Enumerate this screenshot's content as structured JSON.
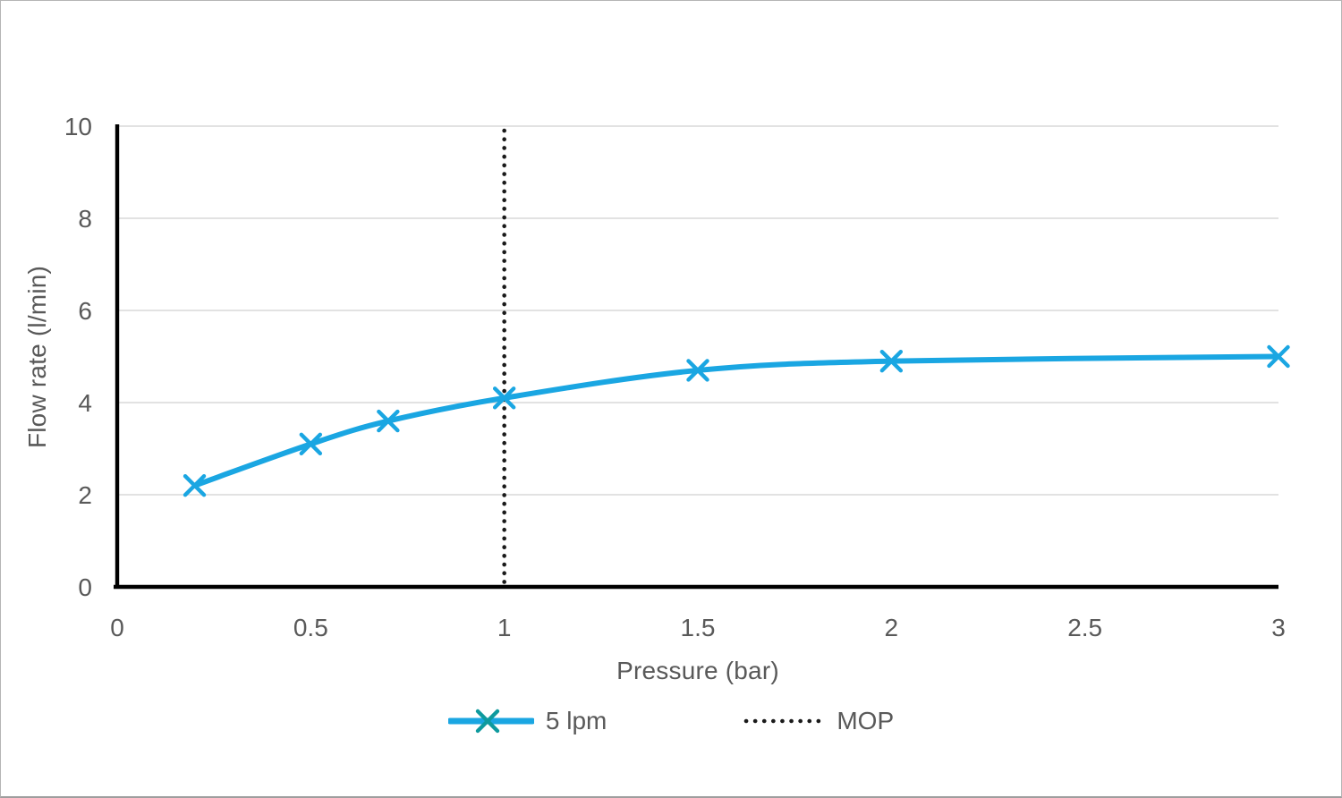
{
  "page": {
    "background": "#ffffff",
    "border_color": "#b5b5b5"
  },
  "chart_data": {
    "type": "line",
    "title": "",
    "xlabel": "Pressure (bar)",
    "ylabel": "Flow rate (l/min)",
    "xlim": [
      0,
      3
    ],
    "ylim": [
      0,
      10
    ],
    "x_ticks": [
      {
        "value": 0,
        "label": "0"
      },
      {
        "value": 0.5,
        "label": "0.5"
      },
      {
        "value": 1,
        "label": "1"
      },
      {
        "value": 1.5,
        "label": "1.5"
      },
      {
        "value": 2,
        "label": "2"
      },
      {
        "value": 2.5,
        "label": "2.5"
      },
      {
        "value": 3,
        "label": "3"
      }
    ],
    "y_ticks": [
      {
        "value": 0,
        "label": "0"
      },
      {
        "value": 2,
        "label": "2"
      },
      {
        "value": 4,
        "label": "4"
      },
      {
        "value": 6,
        "label": "6"
      },
      {
        "value": 8,
        "label": "8"
      },
      {
        "value": 10,
        "label": "10"
      }
    ],
    "grid": {
      "horizontal": true,
      "vertical": false,
      "color": "#d9d9d9"
    },
    "axis_color": "#000000",
    "tick_label_color": "#595959",
    "legend_position": "bottom-center",
    "series": [
      {
        "name": "5 lpm",
        "type": "line",
        "smooth": true,
        "color": "#1AA6E2",
        "marker": "x",
        "marker_color": "#1AA6E2",
        "legend_marker_color": "#0E9A9E",
        "points": [
          [
            0.2,
            2.2
          ],
          [
            0.5,
            3.1
          ],
          [
            0.7,
            3.6
          ],
          [
            1.0,
            4.1
          ],
          [
            1.5,
            4.7
          ],
          [
            2.0,
            4.9
          ],
          [
            3.0,
            5.0
          ]
        ]
      },
      {
        "name": "MOP",
        "type": "vline",
        "style": "dotted",
        "color": "#1a1a1a",
        "x": 1
      }
    ]
  }
}
